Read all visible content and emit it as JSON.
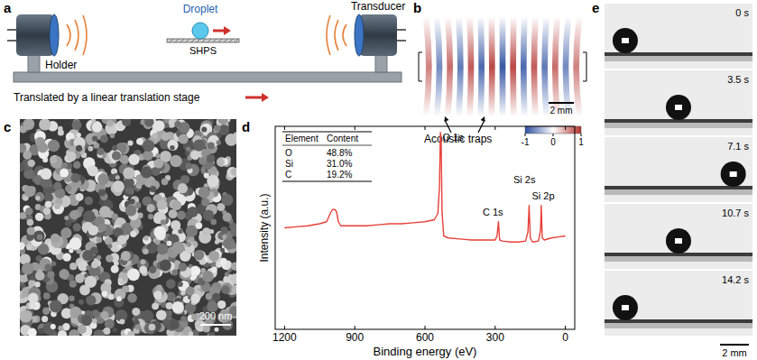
{
  "panels": {
    "a": {
      "label": "a",
      "droplet": "Droplet",
      "surface": "SHPS",
      "transducer": "Transducer",
      "holder": "Holder",
      "caption": "Translated by a linear translation stage"
    },
    "b": {
      "label": "b",
      "scale_bar": "2 mm",
      "annotation": "Acoustic traps",
      "colorbar": {
        "range": [
          -1,
          1
        ],
        "ticks": [
          -1,
          0,
          1
        ]
      }
    },
    "c": {
      "label": "c",
      "scale_bar": "200 nm"
    },
    "d": {
      "label": "d",
      "table": {
        "header": [
          "Element",
          "Content"
        ],
        "rows": [
          [
            "O",
            "48.8%"
          ],
          [
            "Si",
            "31.0%"
          ],
          [
            "C",
            "19.2%"
          ]
        ]
      }
    },
    "e": {
      "label": "e",
      "times": [
        "0 s",
        "3.5 s",
        "7.1 s",
        "10.7 s",
        "14.2 s"
      ],
      "scale_bar": "2 mm"
    }
  },
  "chart_data": {
    "type": "line",
    "x_label": "Binding energy (eV)",
    "y_label": "Intensity (a.u.)",
    "x": [
      1200,
      1150,
      1100,
      1050,
      1020,
      1005,
      995,
      985,
      978,
      970,
      960,
      900,
      850,
      800,
      750,
      700,
      650,
      600,
      560,
      545,
      538,
      534,
      531,
      527,
      520,
      500,
      450,
      400,
      350,
      300,
      292,
      286,
      281,
      270,
      230,
      200,
      170,
      160,
      155,
      150,
      140,
      115,
      106,
      103,
      99,
      90,
      60,
      30,
      0
    ],
    "values": [
      50,
      50.5,
      51,
      52,
      53,
      57,
      59,
      59,
      58,
      53,
      51,
      51,
      51,
      51.5,
      52,
      52,
      52.5,
      53,
      54,
      57,
      70,
      97,
      94,
      58,
      46,
      45,
      44.5,
      44,
      44,
      44,
      46,
      53,
      44,
      43.5,
      43,
      43,
      43.5,
      48,
      61,
      45,
      43,
      43.5,
      49,
      61,
      45,
      44,
      45,
      45.5,
      46
    ],
    "color": "#e8403a",
    "xlim": [
      1240,
      -40
    ],
    "xticks": [
      1200,
      900,
      600,
      300,
      0
    ],
    "ylim": [
      0,
      100
    ],
    "tick_labels": "x",
    "annotations": [
      {
        "text": "O 1s",
        "x": 480,
        "y": 93
      },
      {
        "text": "C 1s",
        "x": 310,
        "y": 56
      },
      {
        "text": "Si 2s",
        "x": 175,
        "y": 72
      },
      {
        "text": "Si 2p",
        "x": 95,
        "y": 64
      }
    ]
  }
}
